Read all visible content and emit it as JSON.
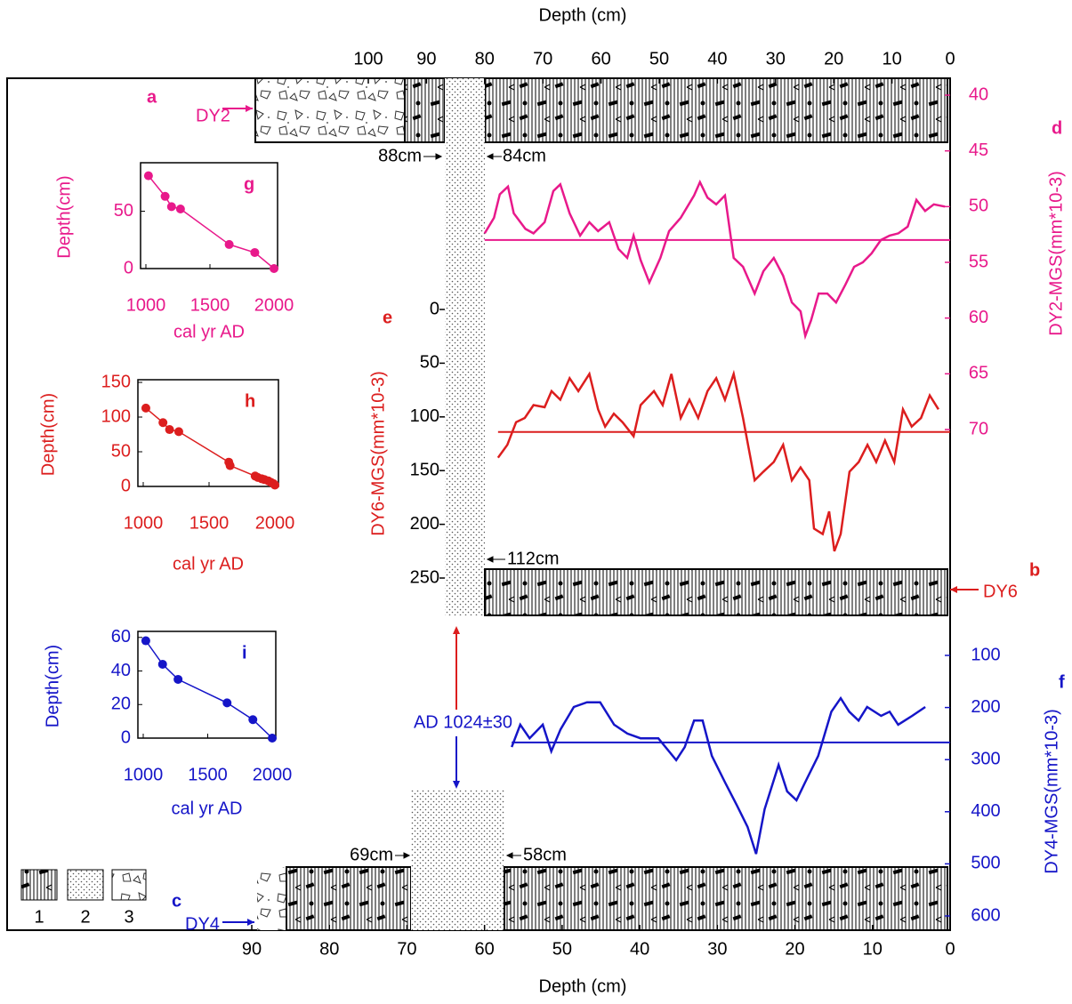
{
  "chart_data": [
    {
      "type": "line",
      "x_label": "Depth (cm)",
      "y_label": "DY2-MGS(mm*10-3)",
      "y2_label": "DY6-MGS(mm*10-3)",
      "xlim": [
        0,
        100
      ],
      "xticks": [
        0,
        10,
        20,
        30,
        40,
        50,
        60,
        70,
        80,
        90,
        100
      ],
      "x_reversed": true,
      "ylim": [
        40,
        70
      ],
      "yticks": [
        40,
        45,
        50,
        55,
        60,
        65,
        70
      ],
      "y_inverted": true,
      "y2lim": [
        0,
        250
      ],
      "y2ticks": [
        0,
        50,
        100,
        150,
        200,
        250
      ],
      "y2_inverted": true,
      "series": [
        {
          "name": "DY2",
          "color": "#e8198b",
          "mean": 53,
          "x": [
            80,
            78.4,
            77.4,
            76,
            75,
            73,
            71.6,
            69.7,
            68.2,
            67,
            65.4,
            63.6,
            62,
            60.5,
            58.6,
            57,
            55.5,
            54.4,
            53.2,
            51.7,
            49.8,
            48.3,
            46.3,
            44,
            43,
            41.7,
            40.2,
            38.7,
            37.2,
            35.6,
            33.6,
            32.1,
            30.3,
            28.7,
            27.2,
            25.7,
            24.9,
            23.9,
            22.6,
            21.1,
            19.6,
            18,
            16.5,
            15,
            13.5,
            11.9,
            10.4,
            8.9,
            7.3,
            5.8,
            4.3,
            2.8,
            0.9
          ],
          "values": [
            52.4,
            51,
            48.9,
            48.2,
            50.6,
            52,
            52.4,
            51.4,
            48.6,
            48,
            50.6,
            52.6,
            51.4,
            52.2,
            51.4,
            53.8,
            54.6,
            52.6,
            54.8,
            56.8,
            54.6,
            52.2,
            51,
            49,
            47.8,
            49.2,
            49.8,
            49,
            54.6,
            55.4,
            57.8,
            55.8,
            54.6,
            56.2,
            58.6,
            59.4,
            61.6,
            60.2,
            57.8,
            57.8,
            58.6,
            57,
            55.4,
            55,
            54.2,
            53,
            52.6,
            52.4,
            51.8,
            49.4,
            50.4,
            49.8,
            50
          ]
        },
        {
          "name": "DY6",
          "color": "#dc1e1e",
          "axis": "y2",
          "mean": 114,
          "x": [
            77.7,
            76.1,
            74.6,
            73.1,
            71.6,
            69.7,
            68.5,
            67,
            65.4,
            63.9,
            62,
            60.5,
            59.3,
            57.8,
            56.3,
            54.4,
            53.2,
            50.9,
            49.4,
            47.9,
            46.3,
            44.8,
            43.3,
            41.7,
            40.2,
            38.7,
            37.2,
            35.6,
            33.6,
            32.1,
            30.3,
            28.7,
            27.2,
            25.7,
            24.2,
            23.4,
            21.9,
            20.8,
            19.9,
            18.8,
            17.3,
            15.7,
            14.2,
            12.7,
            11.2,
            9.6,
            8.1,
            6.6,
            5,
            3.5,
            2
          ],
          "values": [
            138,
            126,
            105,
            101,
            89,
            91,
            76,
            84,
            64,
            76,
            60,
            93,
            109,
            97,
            105,
            118,
            89,
            76,
            89,
            60,
            101,
            84,
            101,
            76,
            64,
            84,
            60,
            101,
            159,
            151,
            142,
            126,
            159,
            147,
            159,
            204,
            209,
            188,
            225,
            209,
            151,
            142,
            126,
            142,
            122,
            142,
            93,
            109,
            101,
            80,
            93
          ]
        }
      ]
    },
    {
      "type": "line",
      "x_label": "Depth (cm)",
      "y_label": "DY4-MGS(mm*10-3)",
      "xlim": [
        0,
        90
      ],
      "xticks": [
        0,
        10,
        20,
        30,
        40,
        50,
        60,
        70,
        80,
        90
      ],
      "x_reversed": true,
      "ylim": [
        100,
        600
      ],
      "yticks": [
        100,
        200,
        300,
        400,
        500,
        600
      ],
      "y_inverted": true,
      "series": [
        {
          "name": "DY4",
          "color": "#1515c8",
          "mean": 267,
          "x": [
            56.5,
            55.4,
            54.2,
            52.5,
            51.4,
            50.2,
            48.5,
            46.8,
            45.1,
            43.3,
            41.6,
            39.9,
            37.6,
            35.3,
            34.2,
            33,
            31.9,
            30.7,
            29,
            27.5,
            26.1,
            25,
            23.9,
            22.1,
            21,
            19.8,
            18.7,
            17,
            15.3,
            14.1,
            13,
            11.8,
            10.7,
            8.9,
            7.8,
            6.7,
            4.9,
            3.2
          ],
          "values": [
            276,
            233,
            259,
            233,
            284,
            242,
            199,
            190,
            190,
            233,
            250,
            259,
            259,
            301,
            276,
            225,
            225,
            293,
            344,
            387,
            429,
            481,
            395,
            310,
            361,
            378,
            344,
            293,
            208,
            182,
            208,
            225,
            199,
            216,
            208,
            233,
            216,
            199
          ]
        }
      ]
    },
    {
      "type": "line",
      "panel_label": "g",
      "x_label": "cal yr AD",
      "y_label": "Depth(cm)",
      "color": "#e8198b",
      "xlim": [
        1000,
        2000
      ],
      "xticks": [
        1000,
        1500,
        2000
      ],
      "ylim": [
        0,
        90
      ],
      "yticks": [
        0,
        50
      ],
      "x": [
        1020,
        1150,
        1200,
        1270,
        1650,
        1850,
        2000
      ],
      "values": [
        81,
        63,
        54,
        52,
        21,
        14,
        0
      ]
    },
    {
      "type": "line",
      "panel_label": "h",
      "x_label": "cal yr AD",
      "y_label": "Depth(cm)",
      "color": "#dc1e1e",
      "xlim": [
        1000,
        2000
      ],
      "xticks": [
        1000,
        1500,
        2000
      ],
      "ylim": [
        0,
        150
      ],
      "yticks": [
        0,
        50,
        100,
        150
      ],
      "x": [
        1020,
        1150,
        1200,
        1270,
        1650,
        1660,
        1850,
        1870,
        1900,
        1920,
        1950,
        1970,
        1990,
        2000
      ],
      "values": [
        113,
        92,
        82,
        79,
        35,
        30,
        15,
        13,
        11,
        10,
        8,
        6,
        4,
        2
      ]
    },
    {
      "type": "line",
      "panel_label": "i",
      "x_label": "cal yr AD",
      "y_label": "Depth(cm)",
      "color": "#1515c8",
      "xlim": [
        1000,
        2000
      ],
      "xticks": [
        1000,
        1500,
        2000
      ],
      "ylim": [
        0,
        62
      ],
      "yticks": [
        0,
        20,
        40,
        60
      ],
      "x": [
        1020,
        1150,
        1270,
        1650,
        1850,
        2000
      ],
      "values": [
        58,
        44,
        35,
        21,
        11,
        0
      ]
    }
  ],
  "panel_labels": [
    "a",
    "b",
    "c",
    "d",
    "e",
    "f"
  ],
  "depth_marks": [
    "88cm",
    "84cm",
    "112cm",
    "69cm",
    "58cm"
  ],
  "date_label": "AD 1024±30",
  "legend_labels": [
    "1",
    "2",
    "3"
  ]
}
